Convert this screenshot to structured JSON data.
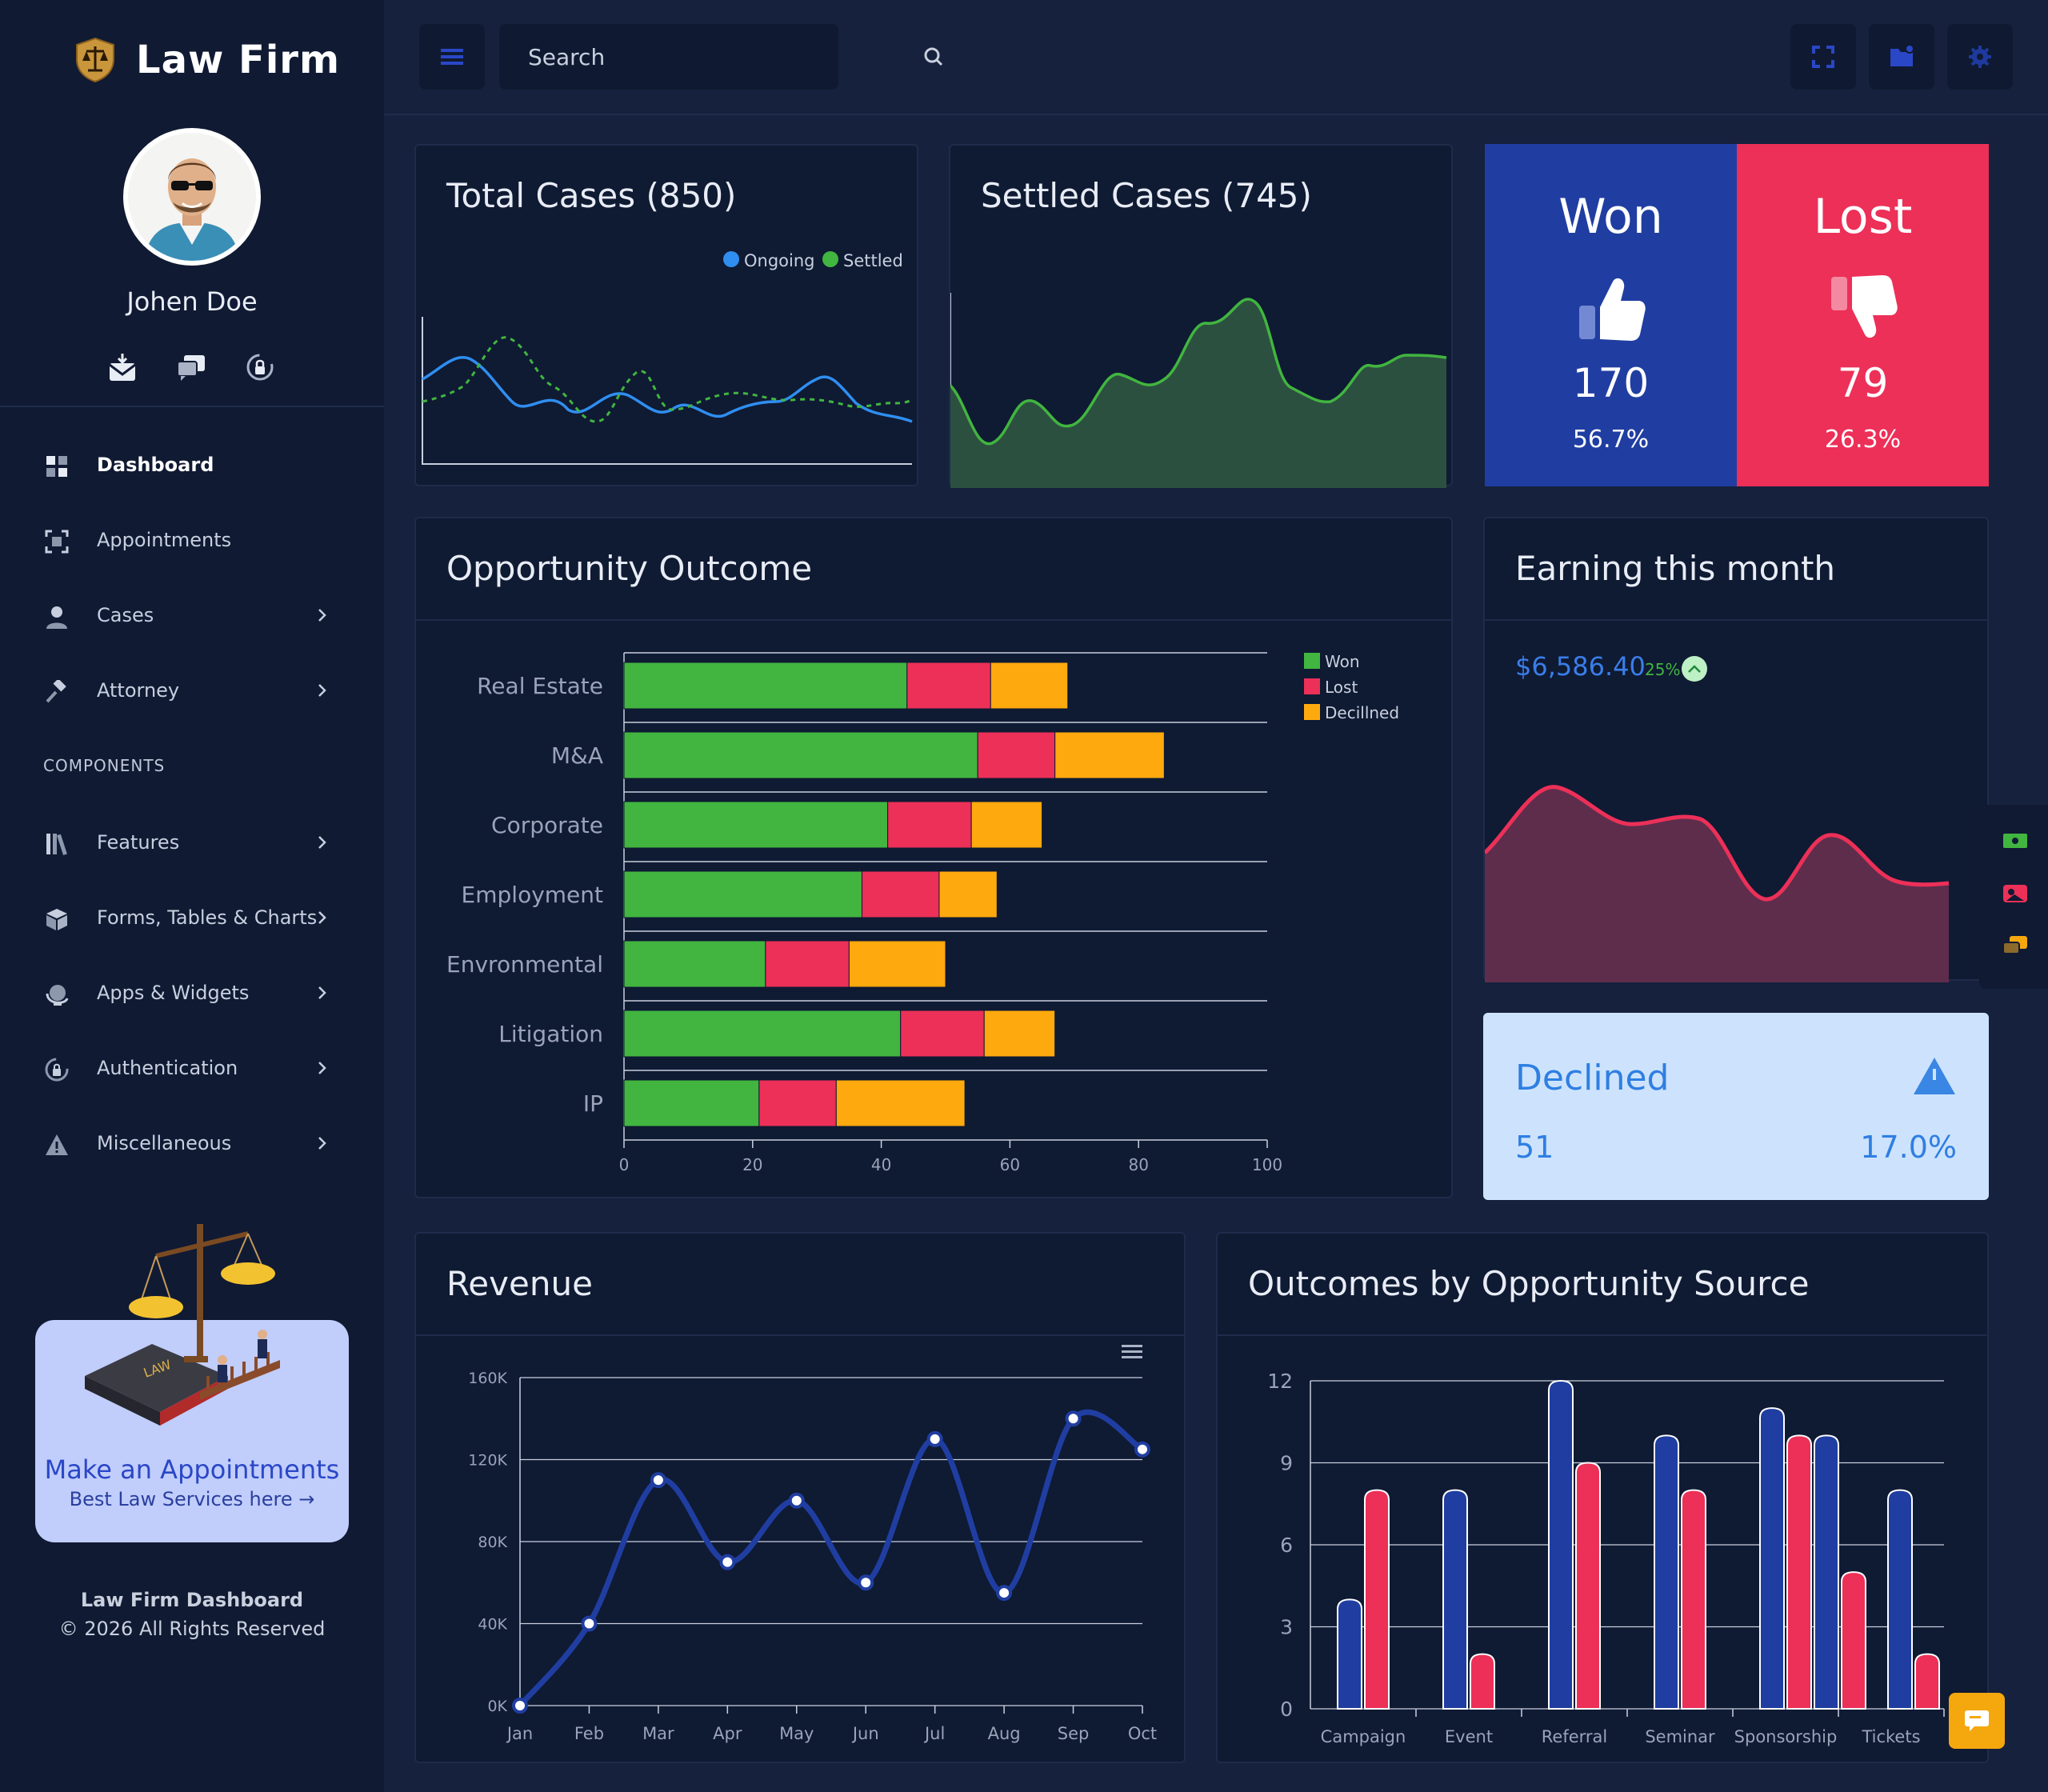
{
  "brand": {
    "name": "Law Firm"
  },
  "user": {
    "name": "Johen Doe"
  },
  "sidebar": {
    "items": [
      {
        "label": "Dashboard",
        "icon": "dashboard-icon",
        "active": true,
        "has_children": false
      },
      {
        "label": "Appointments",
        "icon": "appointments-icon",
        "active": false,
        "has_children": false
      },
      {
        "label": "Cases",
        "icon": "user-icon",
        "active": false,
        "has_children": true
      },
      {
        "label": "Attorney",
        "icon": "gavel-icon",
        "active": false,
        "has_children": true
      }
    ],
    "section_label": "COMPONENTS",
    "component_items": [
      {
        "label": "Features",
        "icon": "books-icon",
        "has_children": true
      },
      {
        "label": "Forms, Tables & Charts",
        "icon": "cube-icon",
        "has_children": true
      },
      {
        "label": "Apps & Widgets",
        "icon": "globe-icon",
        "has_children": true
      },
      {
        "label": "Authentication",
        "icon": "lock-icon",
        "has_children": true
      },
      {
        "label": "Miscellaneous",
        "icon": "warning-icon",
        "has_children": true
      }
    ],
    "promo": {
      "title": "Make an Appointments",
      "subtitle": "Best Law Services here →"
    },
    "footer": {
      "title": "Law Firm Dashboard",
      "copyright": "© 2026 All Rights Reserved"
    }
  },
  "header": {
    "search_placeholder": "Search"
  },
  "colors": {
    "won": "#41b53f",
    "lost": "#ec3058",
    "declined": "#fea90e",
    "blue_panel": "#203ea1",
    "red_panel": "#ec3058",
    "accent": "#2a47c7"
  },
  "total_cases": {
    "title": "Total Cases (850)",
    "legend": [
      "Ongoing",
      "Settled"
    ]
  },
  "settled_cases": {
    "title": "Settled Cases (745)"
  },
  "won": {
    "label": "Won",
    "value": "170",
    "percent": "56.7%"
  },
  "lost": {
    "label": "Lost",
    "value": "79",
    "percent": "26.3%"
  },
  "opportunity": {
    "title": "Opportunity Outcome",
    "chart_data": {
      "type": "bar",
      "orientation": "horizontal",
      "stacked": true,
      "categories": [
        "Real Estate",
        "M&A",
        "Corporate",
        "Employment",
        "Envronmental",
        "Litigation",
        "IP"
      ],
      "series": [
        {
          "name": "Won",
          "color": "#41b53f",
          "values": [
            44,
            55,
            41,
            37,
            22,
            43,
            21
          ]
        },
        {
          "name": "Lost",
          "color": "#ec3058",
          "values": [
            13,
            12,
            13,
            12,
            13,
            13,
            12
          ]
        },
        {
          "name": "Decillned",
          "color": "#fea90e",
          "values": [
            12,
            17,
            11,
            9,
            15,
            11,
            20
          ]
        }
      ],
      "xlim": [
        0,
        100
      ],
      "xticks": [
        "0",
        "20",
        "40",
        "60",
        "80",
        "100"
      ],
      "legend_position": "top-right",
      "grid": true
    }
  },
  "earning": {
    "title": "Earning this month",
    "amount": "$6,586.40",
    "change": "25%"
  },
  "declined": {
    "label": "Declined",
    "value": "51",
    "percent": "17.0%"
  },
  "revenue": {
    "title": "Revenue",
    "chart_data": {
      "type": "line",
      "x": [
        "Jan",
        "Feb",
        "Mar",
        "Apr",
        "May",
        "Jun",
        "Jul",
        "Aug",
        "Sep",
        "Oct"
      ],
      "values": [
        0,
        40000,
        110000,
        70000,
        100000,
        60000,
        130000,
        55000,
        140000,
        125000
      ],
      "ylim": [
        0,
        160000
      ],
      "yticks": [
        "0K",
        "40K",
        "80K",
        "120K",
        "160K"
      ],
      "color": "#203ea1",
      "grid": true
    }
  },
  "outcomes_source": {
    "title": "Outcomes by Opportunity Source",
    "chart_data": {
      "type": "bar",
      "categories": [
        "Campaign",
        "Event",
        "Referral",
        "Seminar",
        "Sponsorship",
        "Tickets"
      ],
      "series": [
        {
          "color": "#203ea1",
          "values": [
            4,
            8,
            12,
            10,
            11,
            10
          ]
        },
        {
          "color": "#ec3058",
          "values": [
            8,
            2,
            9,
            8,
            10,
            5
          ]
        }
      ],
      "extra_bar": {
        "category": "Tickets",
        "blue": 8,
        "red": 2
      },
      "ylim": [
        0,
        12
      ],
      "yticks": [
        "0",
        "3",
        "6",
        "9",
        "12"
      ],
      "grid": true
    }
  }
}
